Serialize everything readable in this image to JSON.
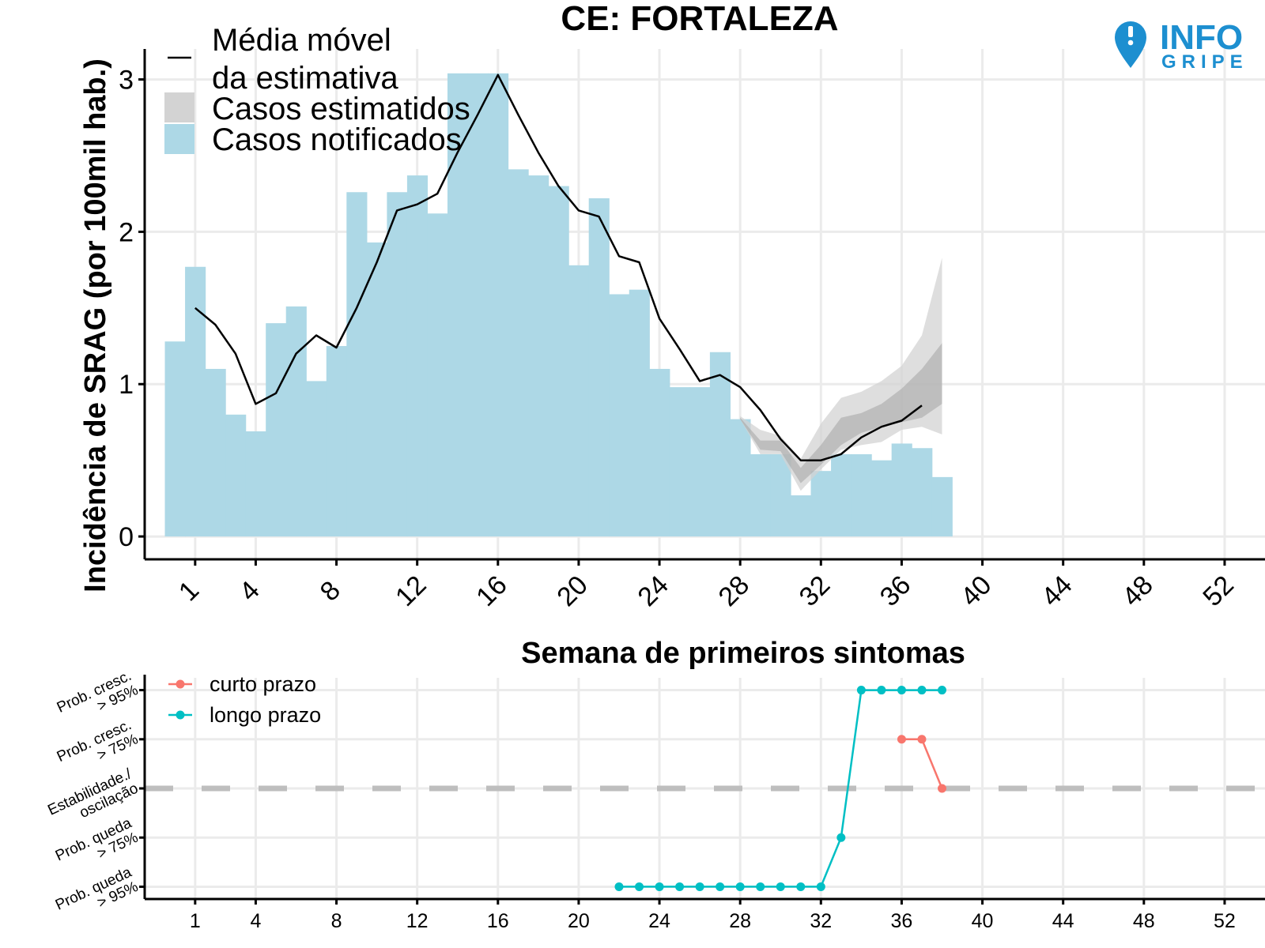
{
  "title": "CE: FORTALEZA",
  "logo": {
    "word1": "INFO",
    "word2": "GRIPE",
    "color": "#1d8fd0"
  },
  "colors": {
    "notified": "#add8e6",
    "estimate_inner": "#a9a9a9",
    "estimate_outer": "#d3d3d3",
    "line": "#000000",
    "short_term": "#f8766d",
    "long_term": "#00bfc4",
    "grid": "#ebebeb",
    "dash": "#bebebe"
  },
  "chart_data": [
    {
      "type": "bar",
      "title": "CE: FORTALEZA",
      "xlabel": "Semana de primeiros sintomas",
      "ylabel": "Incidência de SRAG (por 100mil hab.)",
      "xlim": [
        -1.5,
        54
      ],
      "ylim": [
        -0.15,
        3.2
      ],
      "xticks": [
        1,
        4,
        8,
        12,
        16,
        20,
        24,
        28,
        32,
        36,
        40,
        44,
        48,
        52
      ],
      "yticks": [
        0,
        1,
        2,
        3
      ],
      "legend": {
        "position": "top-left",
        "entries": [
          "Média móvel\nda estimativa",
          "Casos estimatidos",
          "Casos notificados"
        ]
      },
      "weeks": [
        0,
        1,
        2,
        3,
        4,
        5,
        6,
        7,
        8,
        9,
        10,
        11,
        12,
        13,
        14,
        15,
        16,
        17,
        18,
        19,
        20,
        21,
        22,
        23,
        24,
        25,
        26,
        27,
        28,
        29,
        30,
        31,
        32,
        33,
        34,
        35,
        36,
        37,
        38
      ],
      "notified_cases": [
        1.28,
        1.77,
        1.1,
        0.8,
        0.69,
        1.4,
        1.51,
        1.02,
        1.25,
        2.26,
        1.93,
        2.26,
        2.37,
        2.12,
        3.04,
        3.04,
        3.04,
        2.41,
        2.37,
        2.3,
        1.78,
        2.22,
        1.59,
        1.62,
        1.1,
        0.98,
        0.98,
        1.21,
        0.77,
        0.54,
        0.54,
        0.27,
        0.43,
        0.54,
        0.54,
        0.5,
        0.61,
        0.58,
        0.39
      ],
      "moving_average": {
        "weeks": [
          1,
          2,
          3,
          4,
          5,
          6,
          7,
          8,
          9,
          10,
          11,
          12,
          13,
          14,
          15,
          16,
          17,
          18,
          19,
          20,
          21,
          22,
          23,
          24,
          25,
          26,
          27,
          28,
          29,
          30,
          31,
          32,
          33,
          34,
          35,
          36,
          37
        ],
        "values": [
          1.5,
          1.39,
          1.2,
          0.87,
          0.94,
          1.2,
          1.32,
          1.24,
          1.5,
          1.8,
          2.14,
          2.18,
          2.25,
          2.52,
          2.77,
          3.03,
          2.77,
          2.52,
          2.3,
          2.14,
          2.1,
          1.84,
          1.8,
          1.43,
          1.23,
          1.02,
          1.06,
          0.98,
          0.83,
          0.64,
          0.5,
          0.5,
          0.54,
          0.65,
          0.72,
          0.76,
          0.86
        ]
      },
      "estimate_band": {
        "weeks": [
          28,
          29,
          30,
          31,
          32,
          33,
          34,
          35,
          36,
          37,
          38
        ],
        "outer_low": [
          0.77,
          0.54,
          0.54,
          0.3,
          0.44,
          0.57,
          0.6,
          0.62,
          0.7,
          0.72,
          0.67
        ],
        "outer_high": [
          0.79,
          0.7,
          0.66,
          0.51,
          0.74,
          0.91,
          0.95,
          1.02,
          1.12,
          1.32,
          1.83
        ],
        "inner_low": [
          0.77,
          0.57,
          0.56,
          0.35,
          0.47,
          0.6,
          0.68,
          0.72,
          0.75,
          0.78,
          0.87
        ],
        "inner_high": [
          0.78,
          0.63,
          0.63,
          0.45,
          0.6,
          0.78,
          0.81,
          0.87,
          0.97,
          1.1,
          1.27
        ],
        "median": [
          0.77,
          0.6,
          0.6,
          0.4,
          0.53,
          0.7,
          0.75,
          0.8,
          0.87,
          0.97,
          1.05
        ]
      }
    },
    {
      "type": "line",
      "xlabel": "",
      "ylabel": "",
      "xlim": [
        -1.5,
        54
      ],
      "xticks": [
        1,
        4,
        8,
        12,
        16,
        20,
        24,
        28,
        32,
        36,
        40,
        44,
        48,
        52
      ],
      "categories": [
        "Prob. queda\n> 95%",
        "Prob. queda\n> 75%",
        "Estabilidade./\noscilação",
        "Prob. cresc.\n> 75%",
        "Prob. cresc.\n> 95%"
      ],
      "category_values": [
        -2,
        -1,
        0,
        1,
        2
      ],
      "reference_line": 0,
      "legend": {
        "position": "top-left",
        "entries": [
          "curto prazo",
          "longo prazo"
        ]
      },
      "series": [
        {
          "name": "curto prazo",
          "x": [
            36,
            37,
            38
          ],
          "y": [
            1,
            1,
            0
          ]
        },
        {
          "name": "longo prazo",
          "x": [
            22,
            23,
            24,
            25,
            26,
            27,
            28,
            29,
            30,
            31,
            32,
            33,
            34,
            35,
            36,
            37,
            38
          ],
          "y": [
            -2,
            -2,
            -2,
            -2,
            -2,
            -2,
            -2,
            -2,
            -2,
            -2,
            -2,
            -1,
            2,
            2,
            2,
            2,
            2
          ]
        }
      ]
    }
  ]
}
